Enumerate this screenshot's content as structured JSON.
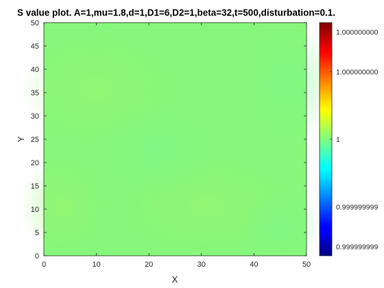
{
  "chart_data": {
    "type": "heatmap",
    "title": "S value plot. A=1,mu=1.8,d=1,D1=6,D2=1,beta=32,t=500,disturbation=0.1.",
    "xlabel": "X",
    "ylabel": "Y",
    "xlim": [
      0,
      50
    ],
    "ylim": [
      0,
      50
    ],
    "xticks": [
      "0",
      "10",
      "20",
      "30",
      "40",
      "50"
    ],
    "yticks": [
      "0",
      "5",
      "10",
      "15",
      "20",
      "25",
      "30",
      "35",
      "40",
      "45",
      "50"
    ],
    "xtick_values": [
      0,
      10,
      20,
      30,
      40,
      50
    ],
    "ytick_values": [
      0,
      5,
      10,
      15,
      20,
      25,
      30,
      35,
      40,
      45,
      50
    ],
    "value_description_base": 1,
    "dominant_color": "#86f77a",
    "colormap": "jet",
    "colorbar": {
      "ticks": [
        "1.000000000",
        "1.000000000",
        "1",
        "0.999999999",
        "0.999999999"
      ],
      "tick_fractions": [
        0.96,
        0.79,
        0.5,
        0.21,
        0.04
      ]
    }
  }
}
